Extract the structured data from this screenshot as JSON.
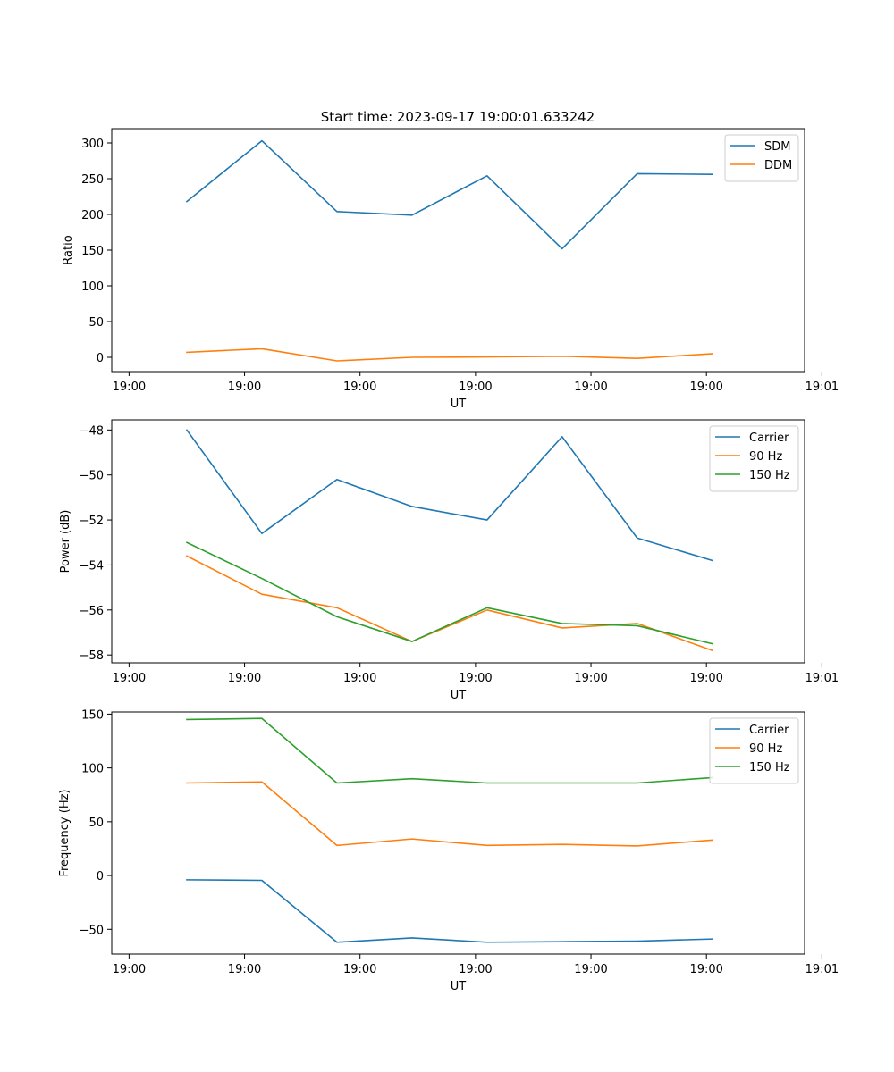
{
  "figure_title": "Start time: 2023-09-17 19:00:01.633242",
  "chart_data": [
    {
      "type": "line",
      "title": "Start time: 2023-09-17 19:00:01.633242",
      "xlabel": "UT",
      "ylabel": "Ratio",
      "x": [
        0.5,
        1.15,
        1.8,
        2.45,
        3.1,
        3.75,
        4.4,
        5.05
      ],
      "xlim": [
        -0.15,
        5.85
      ],
      "xticks": [
        0,
        1,
        2,
        3,
        4,
        5,
        6
      ],
      "xtick_labels": [
        "19:00",
        "19:00",
        "19:00",
        "19:00",
        "19:00",
        "19:00",
        "19:01"
      ],
      "ylim": [
        -20,
        320
      ],
      "yticks": [
        0,
        50,
        100,
        150,
        200,
        250,
        300
      ],
      "ytick_labels": [
        "0",
        "50",
        "100",
        "150",
        "200",
        "250",
        "300"
      ],
      "legend": "top-right",
      "series": [
        {
          "name": "SDM",
          "color": "#1f77b4",
          "values": [
            218,
            303,
            204,
            199,
            254,
            152,
            257,
            256
          ]
        },
        {
          "name": "DDM",
          "color": "#ff7f0e",
          "values": [
            7,
            12,
            -5,
            0,
            0.5,
            1.5,
            -1.5,
            5
          ]
        }
      ]
    },
    {
      "type": "line",
      "title": "",
      "xlabel": "UT",
      "ylabel": "Power (dB)",
      "x": [
        0.5,
        1.15,
        1.8,
        2.45,
        3.1,
        3.75,
        4.4,
        5.05
      ],
      "xlim": [
        -0.15,
        5.85
      ],
      "xticks": [
        0,
        1,
        2,
        3,
        4,
        5,
        6
      ],
      "xtick_labels": [
        "19:00",
        "19:00",
        "19:00",
        "19:00",
        "19:00",
        "19:00",
        "19:01"
      ],
      "ylim": [
        -58.35,
        -47.55
      ],
      "yticks": [
        -58,
        -56,
        -54,
        -52,
        -50,
        -48
      ],
      "ytick_labels": [
        "−58",
        "−56",
        "−54",
        "−52",
        "−50",
        "−48"
      ],
      "legend": "top-right",
      "series": [
        {
          "name": "Carrier",
          "color": "#1f77b4",
          "values": [
            -48.0,
            -52.6,
            -50.2,
            -51.4,
            -52.0,
            -48.3,
            -52.8,
            -53.8
          ]
        },
        {
          "name": "90 Hz",
          "color": "#ff7f0e",
          "values": [
            -53.6,
            -55.3,
            -55.9,
            -57.4,
            -56.0,
            -56.8,
            -56.6,
            -57.8
          ]
        },
        {
          "name": "150 Hz",
          "color": "#2ca02c",
          "values": [
            -53.0,
            -54.6,
            -56.3,
            -57.4,
            -55.9,
            -56.6,
            -56.7,
            -57.5
          ]
        }
      ]
    },
    {
      "type": "line",
      "title": "",
      "xlabel": "UT",
      "ylabel": "Frequency (Hz)",
      "x": [
        0.5,
        1.15,
        1.8,
        2.45,
        3.1,
        3.75,
        4.4,
        5.05
      ],
      "xlim": [
        -0.15,
        5.85
      ],
      "xticks": [
        0,
        1,
        2,
        3,
        4,
        5,
        6
      ],
      "xtick_labels": [
        "19:00",
        "19:00",
        "19:00",
        "19:00",
        "19:00",
        "19:00",
        "19:01"
      ],
      "ylim": [
        -73,
        152
      ],
      "yticks": [
        -50,
        0,
        50,
        100,
        150
      ],
      "ytick_labels": [
        "−50",
        "0",
        "50",
        "100",
        "150"
      ],
      "legend": "top-right",
      "series": [
        {
          "name": "Carrier",
          "color": "#1f77b4",
          "values": [
            -4,
            -4.5,
            -62,
            -58,
            -62,
            -61.5,
            -61,
            -59
          ]
        },
        {
          "name": "90 Hz",
          "color": "#ff7f0e",
          "values": [
            86,
            87,
            28,
            34,
            28,
            29,
            27.5,
            33
          ]
        },
        {
          "name": "150 Hz",
          "color": "#2ca02c",
          "values": [
            145,
            146,
            86,
            90,
            86,
            86,
            86,
            91
          ]
        }
      ]
    }
  ]
}
